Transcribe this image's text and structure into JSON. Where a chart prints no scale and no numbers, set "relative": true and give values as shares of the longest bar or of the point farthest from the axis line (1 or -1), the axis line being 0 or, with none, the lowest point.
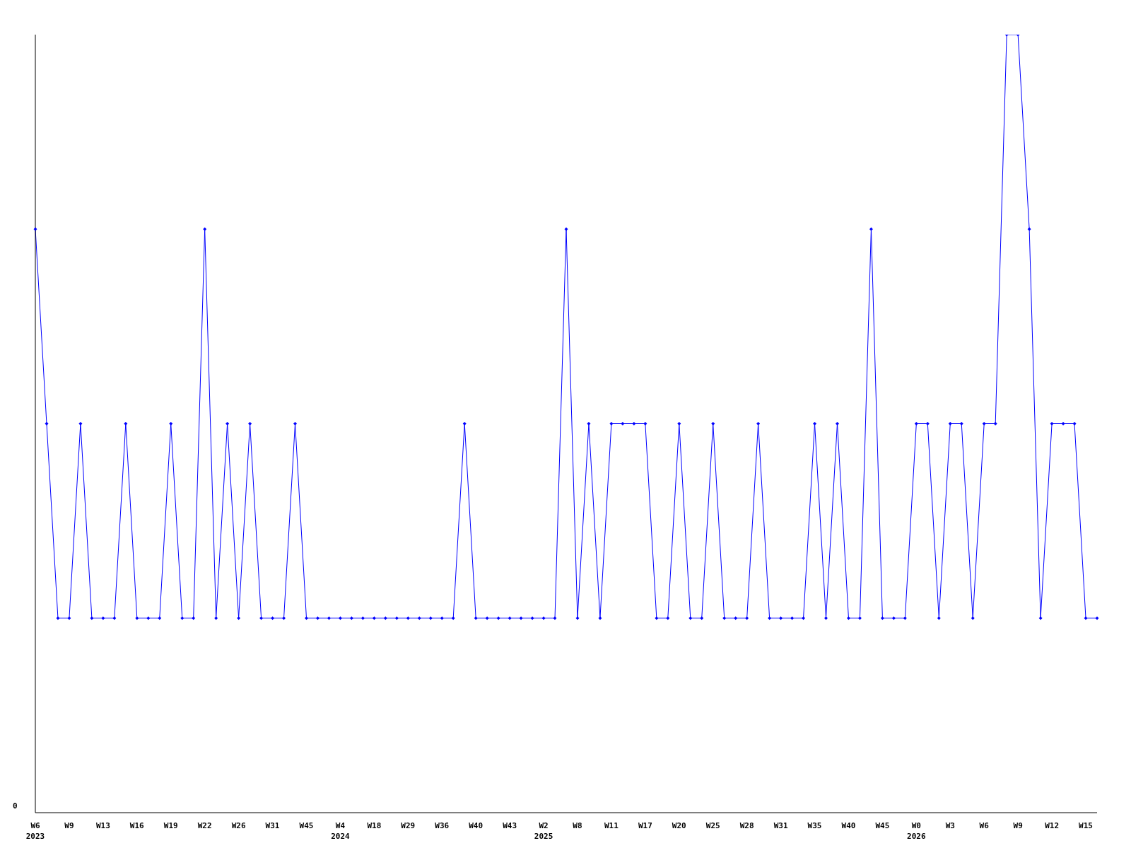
{
  "chart_data": {
    "type": "line",
    "relative": true,
    "marker": "diamond",
    "annotations": [
      "0"
    ],
    "categories": [
      "W6\n2023",
      null,
      null,
      "W9",
      null,
      null,
      "W13",
      null,
      null,
      "W16",
      null,
      null,
      "W19",
      null,
      null,
      "W22",
      null,
      null,
      "W26",
      null,
      null,
      "W31",
      null,
      null,
      "W45",
      null,
      null,
      "W4\n2024",
      null,
      null,
      "W18",
      null,
      null,
      "W29",
      null,
      null,
      "W36",
      null,
      null,
      "W40",
      null,
      null,
      "W43",
      null,
      null,
      "W2\n2025",
      null,
      null,
      "W8",
      null,
      null,
      "W11",
      null,
      null,
      "W17",
      null,
      null,
      "W20",
      null,
      null,
      "W25",
      null,
      null,
      "W28",
      null,
      null,
      "W31",
      null,
      null,
      "W35",
      null,
      null,
      "W40",
      null,
      null,
      "W45",
      null,
      null,
      "W0\n2026",
      null,
      null,
      "W3",
      null,
      null,
      "W6",
      null,
      null,
      "W9",
      null,
      null,
      "W12",
      null,
      null,
      "W15",
      null
    ],
    "series": [
      {
        "color": "#0000ff",
        "values": [
          0.75,
          0.5,
          0.25,
          0.25,
          0.5,
          0.25,
          0.25,
          0.25,
          0.5,
          0.25,
          0.25,
          0.25,
          0.5,
          0.25,
          0.25,
          0.75,
          0.25,
          0.5,
          0.25,
          0.5,
          0.25,
          0.25,
          0.25,
          0.5,
          0.25,
          0.25,
          0.25,
          0.25,
          0.25,
          0.25,
          0.25,
          0.25,
          0.25,
          0.25,
          0.25,
          0.25,
          0.25,
          0.25,
          0.5,
          0.25,
          0.25,
          0.25,
          0.25,
          0.25,
          0.25,
          0.25,
          0.25,
          0.75,
          0.25,
          0.5,
          0.25,
          0.5,
          0.5,
          0.5,
          0.5,
          0.25,
          0.25,
          0.5,
          0.25,
          0.25,
          0.5,
          0.25,
          0.25,
          0.25,
          0.5,
          0.25,
          0.25,
          0.25,
          0.25,
          0.5,
          0.25,
          0.5,
          0.25,
          0.25,
          0.75,
          0.25,
          0.25,
          0.25,
          0.5,
          0.5,
          0.25,
          0.5,
          0.5,
          0.25,
          0.5,
          0.5,
          1,
          1,
          0.75,
          0.25,
          0.5,
          0.5,
          0.5,
          0.25,
          0.25
        ]
      }
    ],
    "grid": false,
    "legend": false
  }
}
